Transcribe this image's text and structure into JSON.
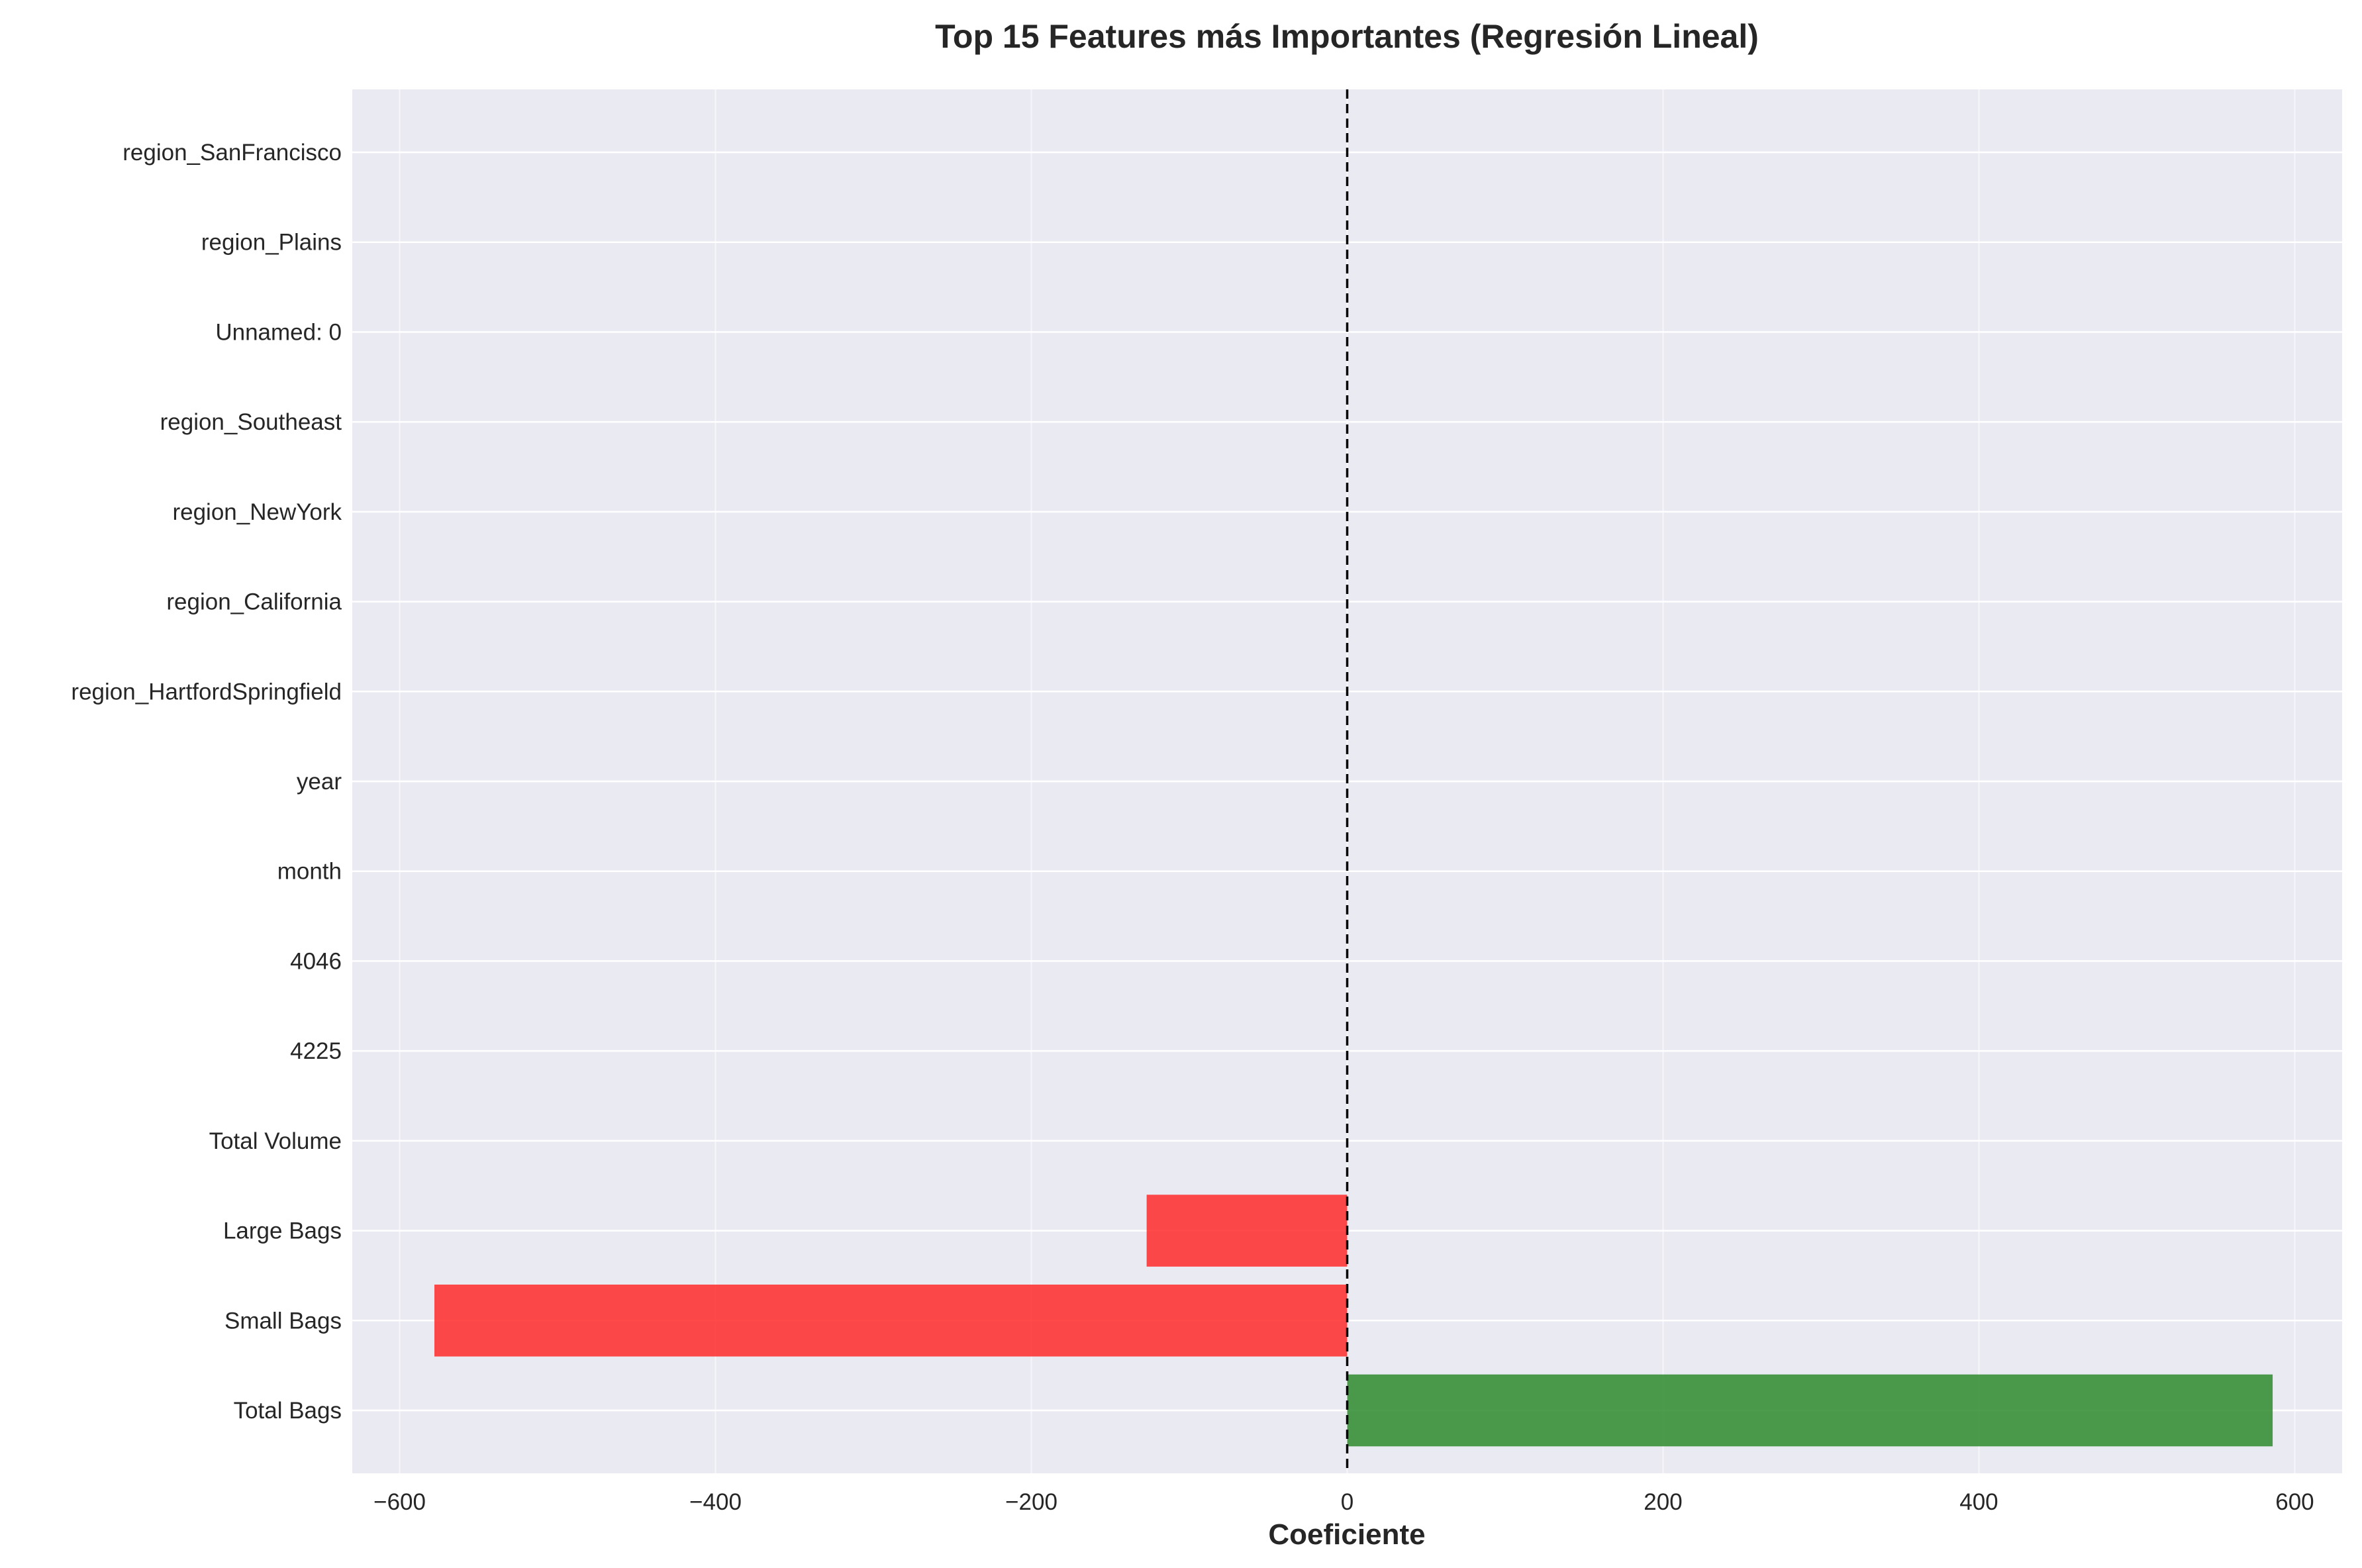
{
  "chart_data": {
    "type": "bar",
    "orientation": "horizontal",
    "title": "Top 15 Features más Importantes (Regresión Lineal)",
    "xlabel": "Coeficiente",
    "ylabel": "",
    "xlim": [
      -630,
      630
    ],
    "xticks": [
      -600,
      -400,
      -200,
      0,
      200,
      400,
      600
    ],
    "xtick_labels": [
      "−600",
      "−400",
      "−200",
      "0",
      "200",
      "400",
      "600"
    ],
    "grid": true,
    "reference_line": {
      "x": 0,
      "style": "dashed",
      "color": "#000000"
    },
    "categories": [
      "Total Bags",
      "Small Bags",
      "Large Bags",
      "Total Volume",
      "4225",
      "4046",
      "month",
      "year",
      "region_HartfordSpringfield",
      "region_California",
      "region_NewYork",
      "region_Southeast",
      "Unnamed: 0",
      "region_Plains",
      "region_SanFrancisco"
    ],
    "values": [
      586,
      -578,
      -127,
      0.02,
      0.01,
      0.01,
      0.005,
      0.004,
      0.003,
      0.003,
      0.002,
      0.002,
      0.001,
      0.001,
      0.001
    ],
    "colors": {
      "positive": "#2e8b2e",
      "negative": "#ff2a2a",
      "background": "#eaeaf2",
      "grid": "#ffffff"
    }
  }
}
